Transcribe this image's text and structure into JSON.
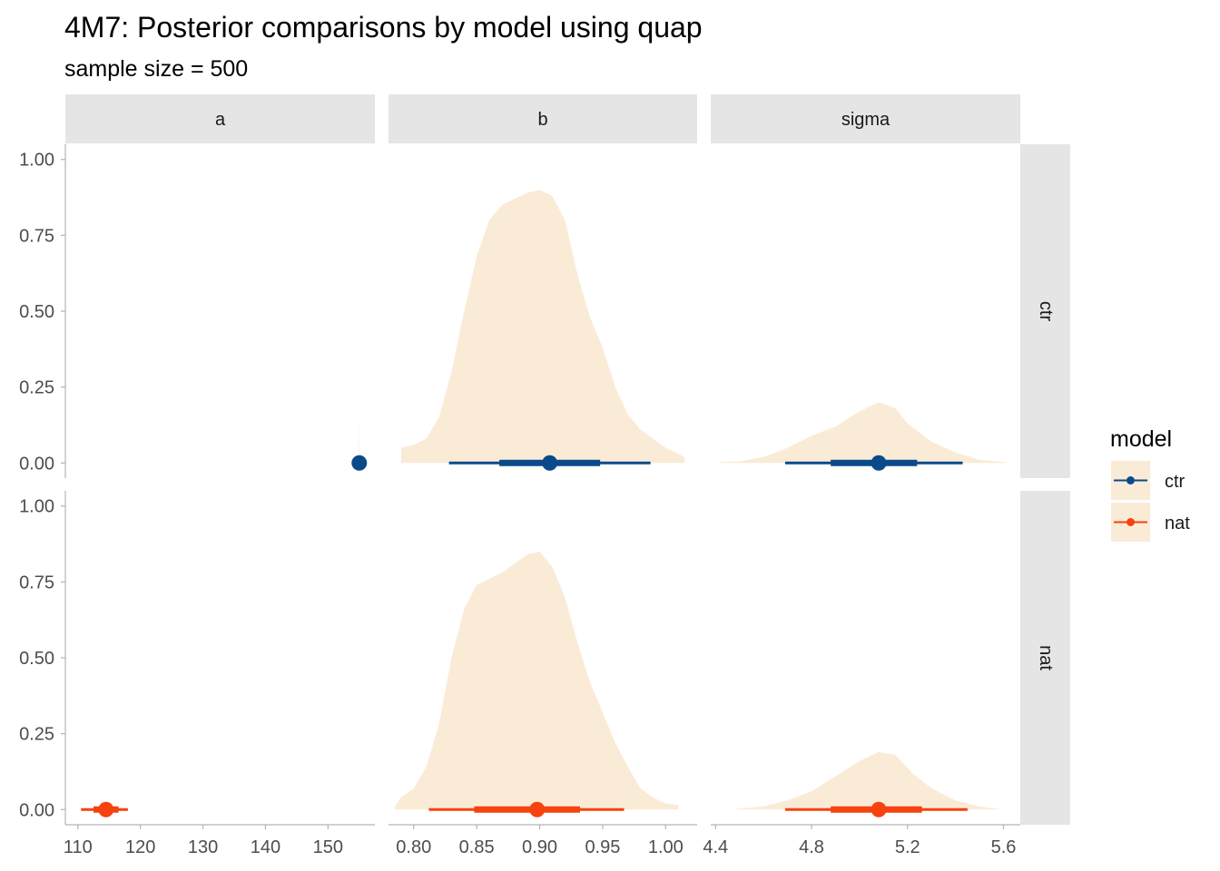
{
  "chart_data": {
    "type": "area",
    "title": "4M7: Posterior comparisons by model using quap",
    "subtitle": "sample size = 500",
    "facet_cols": [
      "a",
      "b",
      "sigma"
    ],
    "facet_rows": [
      "ctr",
      "nat"
    ],
    "y_ticks": [
      "0.00",
      "0.25",
      "0.50",
      "0.75",
      "1.00"
    ],
    "ylim": [
      -0.05,
      1.05
    ],
    "x_axes": {
      "a": {
        "xlim": [
          108,
          157.5
        ],
        "ticks": [
          110,
          120,
          130,
          140,
          150
        ],
        "tick_labels": [
          "110",
          "120",
          "130",
          "140",
          "150"
        ]
      },
      "b": {
        "xlim": [
          0.78,
          1.025
        ],
        "ticks": [
          0.8,
          0.85,
          0.9,
          0.95,
          1.0
        ],
        "tick_labels": [
          "0.80",
          "0.85",
          "0.90",
          "0.95",
          "1.00"
        ]
      },
      "sigma": {
        "xlim": [
          4.38,
          5.67
        ],
        "ticks": [
          4.4,
          4.8,
          5.2,
          5.6
        ],
        "tick_labels": [
          "4.4",
          "4.8",
          "5.2",
          "5.6"
        ]
      }
    },
    "legend": {
      "title": "model",
      "position": "right",
      "entries": [
        {
          "name": "ctr",
          "color": "#0b4a8a"
        },
        {
          "name": "nat",
          "color": "#f5420f"
        }
      ]
    },
    "density_fill": "#faebd7",
    "panels": [
      {
        "param": "a",
        "model": "ctr",
        "density": [
          [
            154.75,
            0
          ],
          [
            154.95,
            0.02
          ],
          [
            155.0,
            0.15
          ],
          [
            155.05,
            0.02
          ],
          [
            155.25,
            0
          ]
        ],
        "point": 155.0,
        "inner": [
          154.7,
          155.3
        ],
        "outer": [
          154.5,
          155.5
        ]
      },
      {
        "param": "b",
        "model": "ctr",
        "density": [
          [
            0.79,
            0.05
          ],
          [
            0.8,
            0.06
          ],
          [
            0.81,
            0.08
          ],
          [
            0.82,
            0.15
          ],
          [
            0.83,
            0.3
          ],
          [
            0.84,
            0.5
          ],
          [
            0.85,
            0.68
          ],
          [
            0.86,
            0.8
          ],
          [
            0.87,
            0.85
          ],
          [
            0.88,
            0.87
          ],
          [
            0.89,
            0.89
          ],
          [
            0.9,
            0.9
          ],
          [
            0.91,
            0.88
          ],
          [
            0.92,
            0.8
          ],
          [
            0.93,
            0.62
          ],
          [
            0.94,
            0.48
          ],
          [
            0.95,
            0.38
          ],
          [
            0.96,
            0.25
          ],
          [
            0.97,
            0.16
          ],
          [
            0.98,
            0.11
          ],
          [
            0.99,
            0.08
          ],
          [
            1.0,
            0.05
          ],
          [
            1.01,
            0.03
          ],
          [
            1.015,
            0.02
          ]
        ],
        "point": 0.908,
        "inner": [
          0.868,
          0.948
        ],
        "outer": [
          0.828,
          0.988
        ]
      },
      {
        "param": "sigma",
        "model": "ctr",
        "density": [
          [
            4.42,
            0.003
          ],
          [
            4.5,
            0.005
          ],
          [
            4.6,
            0.02
          ],
          [
            4.7,
            0.05
          ],
          [
            4.8,
            0.09
          ],
          [
            4.9,
            0.12
          ],
          [
            5.0,
            0.17
          ],
          [
            5.08,
            0.2
          ],
          [
            5.15,
            0.18
          ],
          [
            5.2,
            0.13
          ],
          [
            5.3,
            0.07
          ],
          [
            5.4,
            0.035
          ],
          [
            5.5,
            0.01
          ],
          [
            5.6,
            0.003
          ],
          [
            5.62,
            0.001
          ]
        ],
        "point": 5.08,
        "inner": [
          4.88,
          5.24
        ],
        "outer": [
          4.69,
          5.43
        ]
      },
      {
        "param": "a",
        "model": "nat",
        "density": [],
        "point": 114.5,
        "inner": [
          112.5,
          116.5
        ],
        "outer": [
          110.5,
          118.0
        ]
      },
      {
        "param": "b",
        "model": "nat",
        "density": [
          [
            0.785,
            0.01
          ],
          [
            0.79,
            0.04
          ],
          [
            0.8,
            0.07
          ],
          [
            0.81,
            0.14
          ],
          [
            0.82,
            0.28
          ],
          [
            0.83,
            0.5
          ],
          [
            0.84,
            0.66
          ],
          [
            0.85,
            0.74
          ],
          [
            0.86,
            0.76
          ],
          [
            0.87,
            0.78
          ],
          [
            0.88,
            0.81
          ],
          [
            0.89,
            0.84
          ],
          [
            0.9,
            0.85
          ],
          [
            0.91,
            0.8
          ],
          [
            0.92,
            0.7
          ],
          [
            0.93,
            0.55
          ],
          [
            0.94,
            0.42
          ],
          [
            0.95,
            0.32
          ],
          [
            0.96,
            0.22
          ],
          [
            0.97,
            0.14
          ],
          [
            0.98,
            0.07
          ],
          [
            0.99,
            0.04
          ],
          [
            1.0,
            0.02
          ],
          [
            1.01,
            0.015
          ]
        ],
        "point": 0.898,
        "inner": [
          0.848,
          0.932
        ],
        "outer": [
          0.812,
          0.967
        ]
      },
      {
        "param": "sigma",
        "model": "nat",
        "density": [
          [
            4.48,
            0.002
          ],
          [
            4.6,
            0.01
          ],
          [
            4.7,
            0.03
          ],
          [
            4.8,
            0.06
          ],
          [
            4.9,
            0.11
          ],
          [
            5.0,
            0.16
          ],
          [
            5.08,
            0.19
          ],
          [
            5.15,
            0.18
          ],
          [
            5.22,
            0.12
          ],
          [
            5.3,
            0.07
          ],
          [
            5.4,
            0.03
          ],
          [
            5.5,
            0.01
          ],
          [
            5.58,
            0.002
          ]
        ],
        "point": 5.08,
        "inner": [
          4.88,
          5.26
        ],
        "outer": [
          4.69,
          5.45
        ]
      }
    ]
  }
}
